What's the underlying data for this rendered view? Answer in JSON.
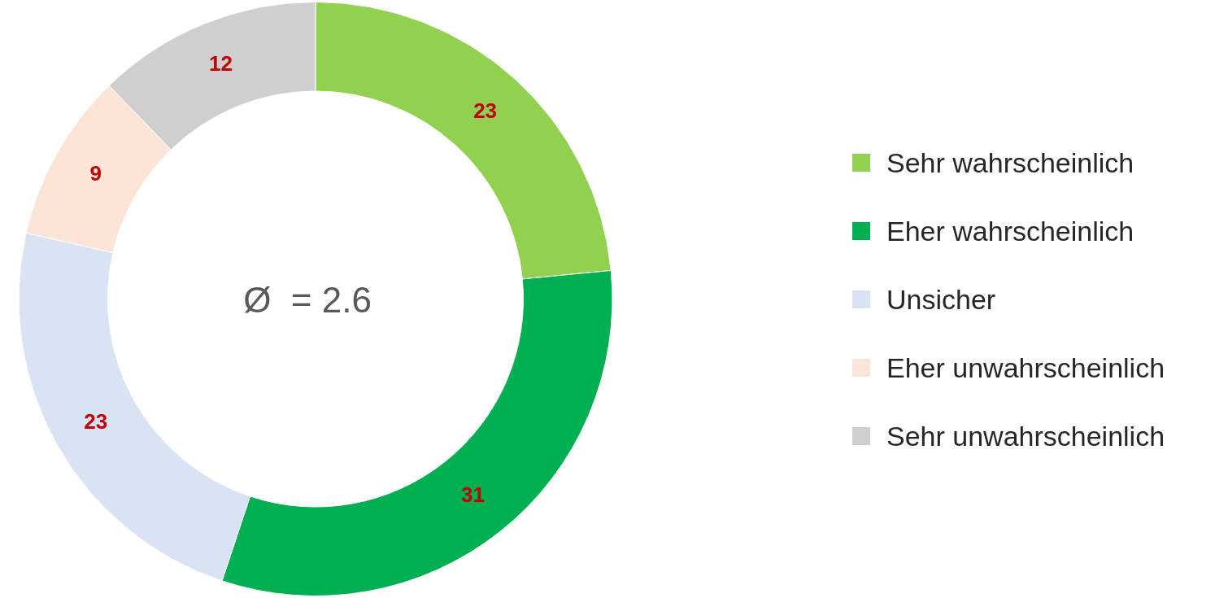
{
  "chart_data": {
    "type": "donut",
    "categories": [
      "Sehr wahrscheinlich",
      "Eher wahrscheinlich",
      "Unsicher",
      "Eher unwahrscheinlich",
      "Sehr unwahrscheinlich"
    ],
    "values": [
      23,
      31,
      23,
      9,
      12
    ],
    "colors": [
      "#92d050",
      "#00b050",
      "#dae3f3",
      "#fbe5d6",
      "#d0cece"
    ],
    "data_labels": true,
    "legend": "right",
    "annotations": [
      "Ø  = 2.6"
    ]
  }
}
